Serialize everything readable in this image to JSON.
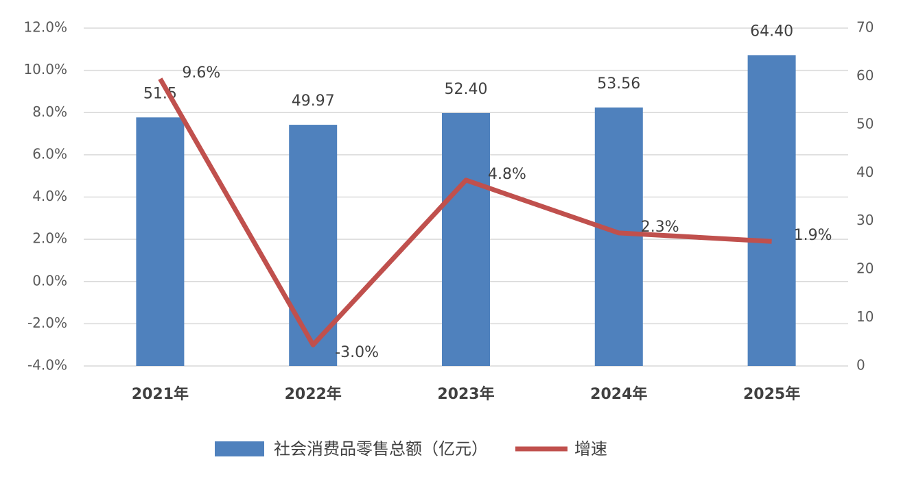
{
  "chart_data": {
    "type": "bar",
    "categories": [
      "2021年",
      "2022年",
      "2023年",
      "2024年",
      "2025年"
    ],
    "series": [
      {
        "name": "社会消费品零售总额（亿元）",
        "type": "bar",
        "axis": "y2",
        "color": "#4f81bd",
        "values": [
          51.5,
          49.97,
          52.4,
          53.56,
          64.4
        ],
        "value_labels": [
          "51.5",
          "49.97",
          "52.40",
          "53.56",
          "64.40"
        ]
      },
      {
        "name": "增速",
        "type": "line",
        "axis": "y",
        "color": "#c0504d",
        "values": [
          9.6,
          -3.0,
          4.8,
          2.3,
          1.9
        ],
        "value_labels": [
          "9.6%",
          "-3.0%",
          "4.8%",
          "2.3%",
          "1.9%"
        ]
      }
    ],
    "ylim": [
      -4,
      12
    ],
    "yticks": [
      {
        "value": -4,
        "label": "-4.0%"
      },
      {
        "value": -2,
        "label": "-2.0%"
      },
      {
        "value": 0,
        "label": "0.0%"
      },
      {
        "value": 2,
        "label": "2.0%"
      },
      {
        "value": 4,
        "label": "4.0%"
      },
      {
        "value": 6,
        "label": "6.0%"
      },
      {
        "value": 8,
        "label": "8.0%"
      },
      {
        "value": 10,
        "label": "10.0%"
      },
      {
        "value": 12,
        "label": "12.0%"
      }
    ],
    "y2lim": [
      0,
      70
    ],
    "y2ticks": [
      0,
      10,
      20,
      30,
      40,
      50,
      60,
      70
    ],
    "grid": true
  }
}
